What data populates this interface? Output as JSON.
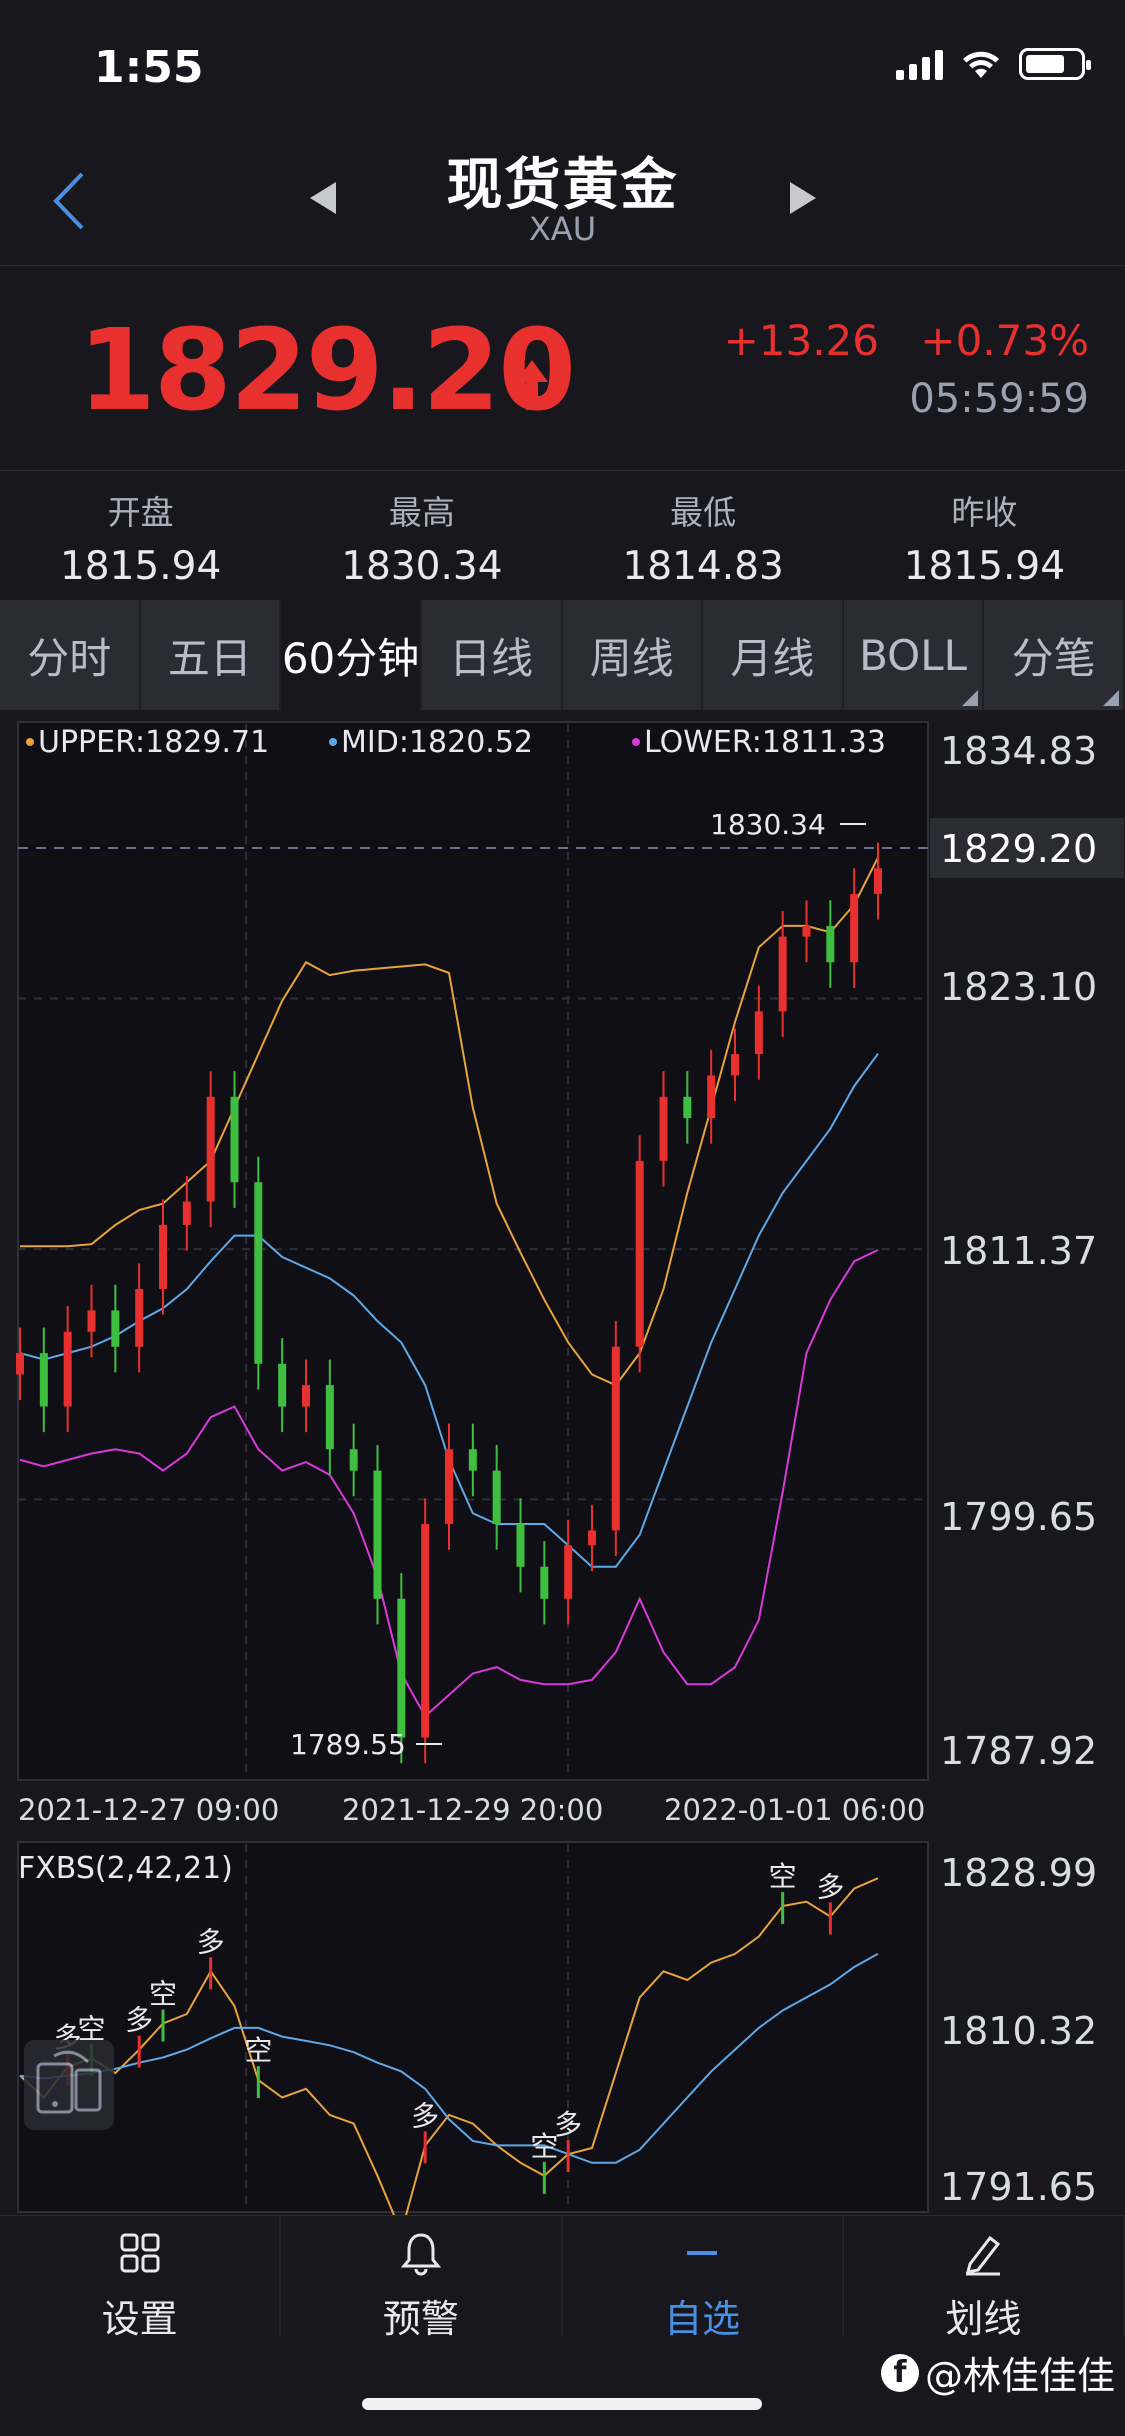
{
  "status": {
    "time": "1:55"
  },
  "nav": {
    "title": "现货黄金",
    "subtitle": "XAU"
  },
  "quote": {
    "price": "1829.20",
    "change": "+13.26",
    "change_pct": "+0.73%",
    "time": "05:59:59"
  },
  "stats": [
    {
      "label": "开盘",
      "value": "1815.94"
    },
    {
      "label": "最高",
      "value": "1830.34"
    },
    {
      "label": "最低",
      "value": "1814.83"
    },
    {
      "label": "昨收",
      "value": "1815.94"
    }
  ],
  "tabs": [
    "分时",
    "五日",
    "60分钟",
    "日线",
    "周线",
    "月线",
    "BOLL",
    "分笔"
  ],
  "indicator": {
    "upper_label": "UPPER:1829.71",
    "mid_label": "MID:1820.52",
    "lower_label": "LOWER:1811.33",
    "sub_label": "FXBS(2,42,21)"
  },
  "colors": {
    "up": "#e8302f",
    "down": "#3fbf3f",
    "upper": "#e8a33d",
    "mid": "#5fa8e8",
    "lower": "#d83ad8"
  },
  "chart_data": {
    "type": "line",
    "title": "",
    "ylim": [
      1787.92,
      1834.83
    ],
    "y_ticks": [
      "1834.83",
      "1829.20",
      "1823.10",
      "1811.37",
      "1799.65",
      "1787.92"
    ],
    "x_ticks": [
      "2021-12-27 09:00",
      "2021-12-29 20:00",
      "2022-01-01 06:00"
    ],
    "current_price": 1829.2,
    "high_annotation": "1830.34",
    "low_annotation": "1789.55",
    "series": [
      {
        "name": "UPPER",
        "values": [
          1811.5,
          1811.5,
          1811.5,
          1811.6,
          1812.5,
          1813.2,
          1813.5,
          1814.5,
          1815.5,
          1818,
          1820.5,
          1823,
          1824.8,
          1824.2,
          1824.4,
          1824.5,
          1824.6,
          1824.7,
          1824.3,
          1818,
          1813.5,
          1811.2,
          1809,
          1807,
          1805.5,
          1805,
          1806.5,
          1809.5,
          1814,
          1818,
          1822,
          1825.5,
          1826.5,
          1826.5,
          1826.2,
          1827.5,
          1829.71
        ]
      },
      {
        "name": "MID",
        "values": [
          1806.5,
          1806.2,
          1806.5,
          1806.8,
          1807.3,
          1808,
          1808.6,
          1809.5,
          1810.8,
          1812,
          1812,
          1811,
          1810.5,
          1810,
          1809.2,
          1808,
          1807,
          1805,
          1801.5,
          1799,
          1798.5,
          1798.5,
          1798.5,
          1797.5,
          1796.5,
          1796.5,
          1798,
          1801,
          1804,
          1807,
          1809.5,
          1812,
          1814,
          1815.5,
          1817,
          1819,
          1820.52
        ]
      },
      {
        "name": "LOWER",
        "values": [
          1801.5,
          1801.2,
          1801.5,
          1801.8,
          1802,
          1801.8,
          1801,
          1801.8,
          1803.5,
          1804,
          1802,
          1801,
          1801.4,
          1800.8,
          1799,
          1796,
          1791.5,
          1789.5,
          1790.5,
          1791.5,
          1791.8,
          1791.2,
          1791,
          1791,
          1791.2,
          1792.5,
          1795,
          1792.5,
          1791,
          1791,
          1791.8,
          1794,
          1800,
          1806.5,
          1809,
          1810.8,
          1811.33
        ]
      },
      {
        "name": "close",
        "values": [
          1806.5,
          1804,
          1807.5,
          1808.5,
          1806.8,
          1809.5,
          1812.5,
          1813.6,
          1818.5,
          1814.5,
          1806,
          1804,
          1805,
          1802,
          1801,
          1795,
          1788.5,
          1798.5,
          1802,
          1801,
          1798.5,
          1796.5,
          1795,
          1797.5,
          1798.2,
          1806.8,
          1815.5,
          1818.5,
          1817.5,
          1819.5,
          1820.5,
          1822.5,
          1826,
          1826.5,
          1824.8,
          1828,
          1829.2
        ]
      }
    ],
    "sub_chart": {
      "label": "FXBS(2,42,21)",
      "ylim": [
        1791.65,
        1828.99
      ],
      "y_ticks": [
        "1828.99",
        "1810.32",
        "1791.65"
      ],
      "signals": [
        "多",
        "空",
        "多",
        "空",
        "多",
        "空",
        "多",
        "空",
        "多",
        "空",
        "多"
      ]
    }
  },
  "toolbar": [
    {
      "label": "设置",
      "icon": "grid-icon"
    },
    {
      "label": "预警",
      "icon": "bell-icon"
    },
    {
      "label": "自选",
      "icon": "minus-icon"
    },
    {
      "label": "划线",
      "icon": "pen-icon"
    }
  ],
  "watermark": "@林佳佳佳"
}
